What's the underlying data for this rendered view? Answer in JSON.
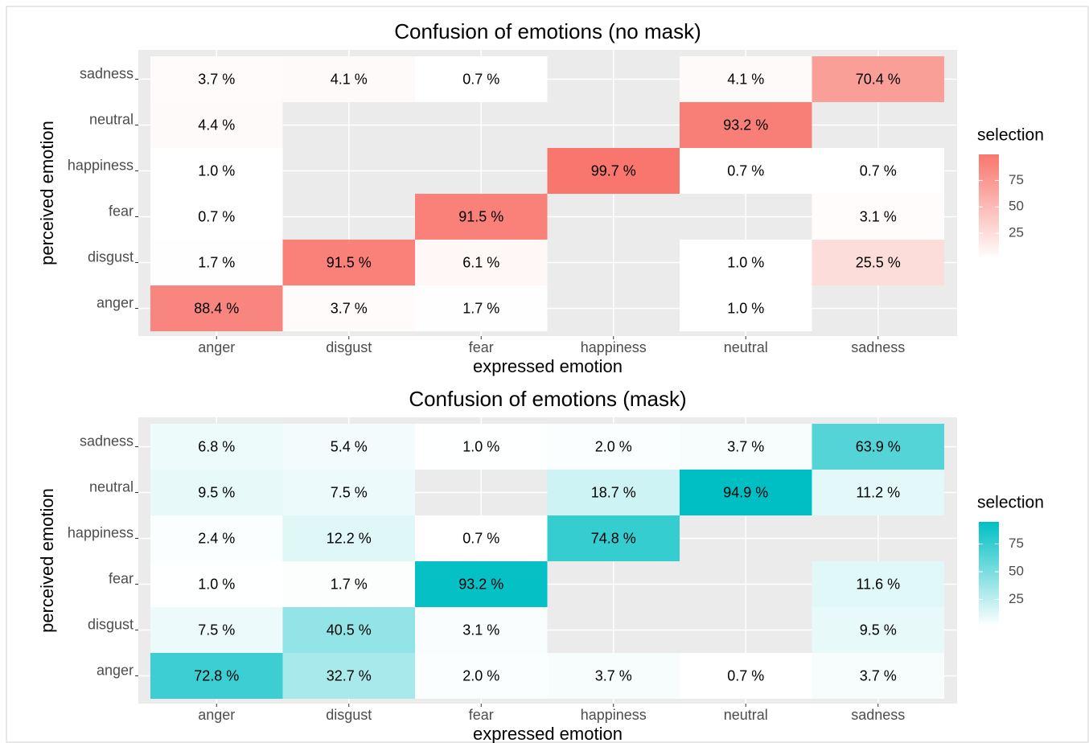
{
  "chart_data": [
    {
      "type": "heatmap",
      "title": "Confusion of emotions (no mask)",
      "x_label": "expressed emotion",
      "y_label": "perceived emotion",
      "x_categories": [
        "anger",
        "disgust",
        "fear",
        "happiness",
        "neutral",
        "sadness"
      ],
      "y_categories": [
        "anger",
        "disgust",
        "fear",
        "happiness",
        "neutral",
        "sadness"
      ],
      "values": [
        [
          88.4,
          3.7,
          1.7,
          null,
          1.0,
          null
        ],
        [
          1.7,
          91.5,
          6.1,
          null,
          1.0,
          25.5
        ],
        [
          0.7,
          null,
          91.5,
          null,
          null,
          3.1
        ],
        [
          1.0,
          null,
          null,
          99.7,
          0.7,
          0.7
        ],
        [
          4.4,
          null,
          null,
          null,
          93.2,
          null
        ],
        [
          3.7,
          4.1,
          0.7,
          null,
          4.1,
          70.4
        ]
      ],
      "value_labels": [
        [
          "88.4 %",
          "3.7 %",
          "1.7 %",
          null,
          "1.0 %",
          null
        ],
        [
          "1.7 %",
          "91.5 %",
          "6.1 %",
          null,
          "1.0 %",
          "25.5 %"
        ],
        [
          "0.7 %",
          null,
          "91.5 %",
          null,
          null,
          "3.1 %"
        ],
        [
          "1.0 %",
          null,
          null,
          "99.7 %",
          "0.7 %",
          "0.7 %"
        ],
        [
          "4.4 %",
          null,
          null,
          null,
          "93.2 %",
          null
        ],
        [
          "3.7 %",
          "4.1 %",
          "0.7 %",
          null,
          "4.1 %",
          "70.4 %"
        ]
      ],
      "legend_title": "selection",
      "clim": [
        0.7,
        99.7
      ],
      "cticks": [
        25,
        50,
        75
      ],
      "low_color": "#ffffff",
      "high_color": "#f8766d"
    },
    {
      "type": "heatmap",
      "title": "Confusion of emotions (mask)",
      "x_label": "expressed emotion",
      "y_label": "perceived emotion",
      "x_categories": [
        "anger",
        "disgust",
        "fear",
        "happiness",
        "neutral",
        "sadness"
      ],
      "y_categories": [
        "anger",
        "disgust",
        "fear",
        "happiness",
        "neutral",
        "sadness"
      ],
      "values": [
        [
          72.8,
          32.7,
          2.0,
          3.7,
          0.7,
          3.7
        ],
        [
          7.5,
          40.5,
          3.1,
          null,
          null,
          9.5
        ],
        [
          1.0,
          1.7,
          93.2,
          null,
          null,
          11.6
        ],
        [
          2.4,
          12.2,
          0.7,
          74.8,
          null,
          null
        ],
        [
          9.5,
          7.5,
          null,
          18.7,
          94.9,
          11.2
        ],
        [
          6.8,
          5.4,
          1.0,
          2.0,
          3.7,
          63.9
        ]
      ],
      "value_labels": [
        [
          "72.8 %",
          "32.7 %",
          "2.0 %",
          "3.7 %",
          "0.7 %",
          "3.7 %"
        ],
        [
          "7.5 %",
          "40.5 %",
          "3.1 %",
          null,
          null,
          "9.5 %"
        ],
        [
          "1.0 %",
          "1.7 %",
          "93.2 %",
          null,
          null,
          "11.6 %"
        ],
        [
          "2.4 %",
          "12.2 %",
          "0.7 %",
          "74.8 %",
          null,
          null
        ],
        [
          "9.5 %",
          "7.5 %",
          null,
          "18.7 %",
          "94.9 %",
          "11.2 %"
        ],
        [
          "6.8 %",
          "5.4 %",
          "1.0 %",
          "2.0 %",
          "3.7 %",
          "63.9 %"
        ]
      ],
      "legend_title": "selection",
      "clim": [
        0.7,
        94.9
      ],
      "cticks": [
        25,
        50,
        75
      ],
      "low_color": "#ffffff",
      "high_color": "#00bfc4"
    }
  ]
}
